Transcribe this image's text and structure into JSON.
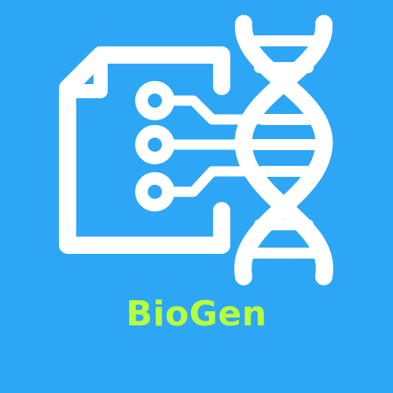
{
  "brand": {
    "name": "BioGen"
  },
  "colors": {
    "background": "#2ea6f6",
    "foreground": "#ffffff",
    "accent": "#b8ff3c"
  },
  "icons": {
    "document": "document-icon",
    "circuit": "circuit-nodes-icon",
    "dna": "dna-helix-icon"
  }
}
